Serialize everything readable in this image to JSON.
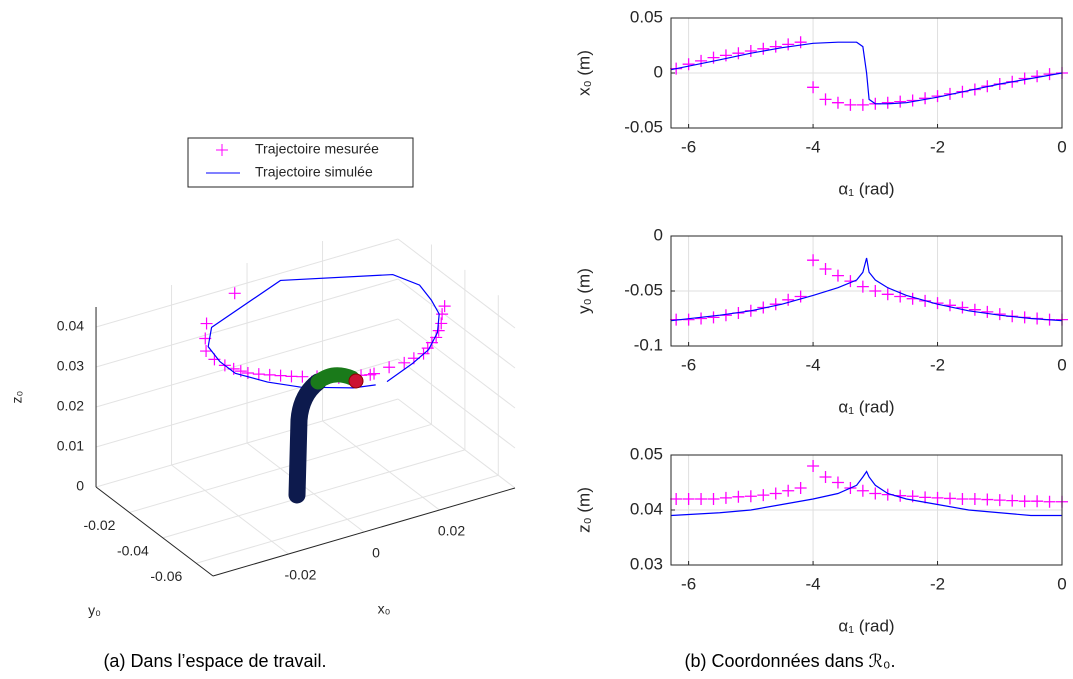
{
  "captions": [
    "(a) Dans l’espace de travail.",
    "(b) Coordonnées dans ℛ₀."
  ],
  "chart_data": [
    {
      "type": "line3d",
      "xlabel": "x₀",
      "ylabel": "y₀",
      "zlabel": "z₀",
      "xlim": [
        -0.04,
        0.04
      ],
      "ylim": [
        -0.07,
        0
      ],
      "zlim": [
        0,
        0.045
      ],
      "xticks": [
        -0.02,
        0,
        0.02
      ],
      "yticks": [
        -0.06,
        -0.04,
        -0.02
      ],
      "zticks": [
        0,
        0.01,
        0.02,
        0.03,
        0.04
      ],
      "grid": true,
      "series": [
        {
          "name": "Trajectoire mesurée",
          "color": "#ff00ff",
          "marker": "+"
        },
        {
          "name": "Trajectoire simulée",
          "color": "#0000ff"
        }
      ]
    },
    {
      "type": "line",
      "xlabel": "α₁ (rad)",
      "ylabel": "x₀ (m)",
      "xlim": [
        -6.283,
        0
      ],
      "ylim": [
        -0.05,
        0.05
      ],
      "xticks": [
        -6,
        -4,
        -2,
        0
      ],
      "yticks": [
        -0.05,
        0,
        0.05
      ],
      "grid": true,
      "series": [
        {
          "color": "#ff00ff",
          "marker": "+",
          "x": [
            -6.2,
            -6,
            -5.8,
            -5.6,
            -5.4,
            -5.2,
            -5,
            -4.8,
            -4.6,
            -4.4,
            -4.2,
            -4,
            -3.8,
            -3.6,
            -3.4,
            -3.2,
            -3,
            -2.8,
            -2.6,
            -2.4,
            -2.2,
            -2,
            -1.8,
            -1.6,
            -1.4,
            -1.2,
            -1,
            -0.8,
            -0.6,
            -0.4,
            -0.2,
            0
          ],
          "values": [
            0.004,
            0.008,
            0.011,
            0.014,
            0.016,
            0.018,
            0.02,
            0.022,
            0.024,
            0.026,
            0.028,
            -0.013,
            -0.024,
            -0.027,
            -0.029,
            -0.029,
            -0.028,
            -0.027,
            -0.026,
            -0.025,
            -0.023,
            -0.021,
            -0.019,
            -0.017,
            -0.015,
            -0.012,
            -0.01,
            -0.008,
            -0.005,
            -0.003,
            -0.001,
            0
          ]
        },
        {
          "color": "#0000ff",
          "x": [
            -6.283,
            -5.5,
            -5,
            -4.5,
            -4,
            -3.6,
            -3.3,
            -3.2,
            -3.14,
            -3.1,
            -3,
            -2.8,
            -2.5,
            -2,
            -1.5,
            -1,
            -0.5,
            0
          ],
          "values": [
            0.003,
            0.012,
            0.018,
            0.023,
            0.027,
            0.028,
            0.028,
            0.024,
            0,
            -0.024,
            -0.028,
            -0.028,
            -0.027,
            -0.022,
            -0.016,
            -0.01,
            -0.005,
            0
          ]
        }
      ]
    },
    {
      "type": "line",
      "xlabel": "α₁ (rad)",
      "ylabel": "y₀ (m)",
      "xlim": [
        -6.283,
        0
      ],
      "ylim": [
        -0.1,
        0
      ],
      "xticks": [
        -6,
        -4,
        -2,
        0
      ],
      "yticks": [
        -0.1,
        -0.05,
        0
      ],
      "grid": true,
      "series": [
        {
          "color": "#ff00ff",
          "marker": "+",
          "x": [
            -6.2,
            -6,
            -5.8,
            -5.6,
            -5.4,
            -5.2,
            -5,
            -4.8,
            -4.6,
            -4.4,
            -4.2,
            -4,
            -3.8,
            -3.6,
            -3.4,
            -3.2,
            -3,
            -2.8,
            -2.6,
            -2.4,
            -2.2,
            -2,
            -1.8,
            -1.6,
            -1.4,
            -1.2,
            -1,
            -0.8,
            -0.6,
            -0.4,
            -0.2,
            0
          ],
          "values": [
            -0.076,
            -0.076,
            -0.075,
            -0.074,
            -0.072,
            -0.07,
            -0.068,
            -0.065,
            -0.062,
            -0.058,
            -0.055,
            -0.022,
            -0.03,
            -0.036,
            -0.041,
            -0.046,
            -0.05,
            -0.053,
            -0.055,
            -0.057,
            -0.059,
            -0.061,
            -0.063,
            -0.065,
            -0.067,
            -0.069,
            -0.071,
            -0.073,
            -0.074,
            -0.075,
            -0.076,
            -0.076
          ]
        },
        {
          "color": "#0000ff",
          "x": [
            -6.283,
            -5.5,
            -5,
            -4.5,
            -4,
            -3.6,
            -3.3,
            -3.2,
            -3.14,
            -3.1,
            -3,
            -2.8,
            -2.5,
            -2,
            -1.5,
            -1,
            -0.5,
            0
          ],
          "values": [
            -0.077,
            -0.072,
            -0.068,
            -0.062,
            -0.054,
            -0.047,
            -0.04,
            -0.033,
            -0.02,
            -0.033,
            -0.04,
            -0.047,
            -0.054,
            -0.062,
            -0.068,
            -0.072,
            -0.075,
            -0.077
          ]
        }
      ]
    },
    {
      "type": "line",
      "xlabel": "α₁ (rad)",
      "ylabel": "z₀ (m)",
      "xlim": [
        -6.283,
        0
      ],
      "ylim": [
        0.03,
        0.05
      ],
      "xticks": [
        -6,
        -4,
        -2,
        0
      ],
      "yticks": [
        0.03,
        0.04,
        0.05
      ],
      "grid": true,
      "series": [
        {
          "color": "#ff00ff",
          "marker": "+",
          "x": [
            -6.2,
            -6,
            -5.8,
            -5.6,
            -5.4,
            -5.2,
            -5,
            -4.8,
            -4.6,
            -4.4,
            -4.2,
            -4,
            -3.8,
            -3.6,
            -3.4,
            -3.2,
            -3,
            -2.8,
            -2.6,
            -2.4,
            -2.2,
            -2,
            -1.8,
            -1.6,
            -1.4,
            -1.2,
            -1,
            -0.8,
            -0.6,
            -0.4,
            -0.2,
            0
          ],
          "values": [
            0.042,
            0.042,
            0.042,
            0.042,
            0.0422,
            0.0424,
            0.0425,
            0.0427,
            0.043,
            0.0435,
            0.044,
            0.048,
            0.046,
            0.045,
            0.044,
            0.0435,
            0.043,
            0.0428,
            0.0426,
            0.0425,
            0.0423,
            0.0422,
            0.0421,
            0.042,
            0.042,
            0.0419,
            0.0418,
            0.0417,
            0.0416,
            0.0416,
            0.0415,
            0.0415
          ]
        },
        {
          "color": "#0000ff",
          "x": [
            -6.283,
            -5.5,
            -5,
            -4.5,
            -4,
            -3.6,
            -3.3,
            -3.2,
            -3.14,
            -3.1,
            -3,
            -2.8,
            -2.5,
            -2,
            -1.5,
            -1,
            -0.5,
            0
          ],
          "values": [
            0.039,
            0.0395,
            0.04,
            0.041,
            0.042,
            0.043,
            0.0445,
            0.046,
            0.047,
            0.046,
            0.0445,
            0.043,
            0.042,
            0.041,
            0.04,
            0.0395,
            0.039,
            0.039
          ]
        }
      ]
    }
  ]
}
